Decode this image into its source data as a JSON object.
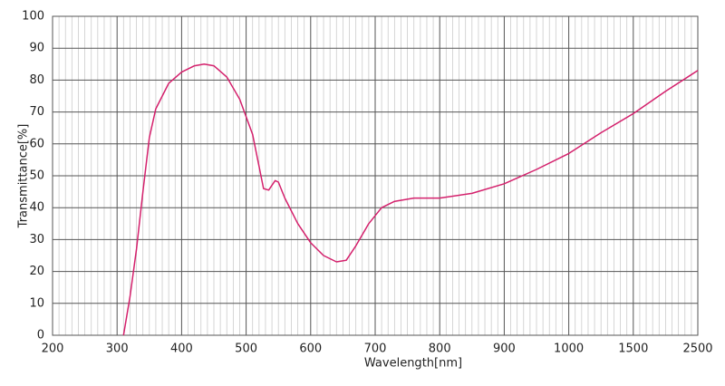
{
  "chart_data": {
    "type": "line",
    "x_label": "Wavelength[nm]",
    "y_label": "Transmittance[%]",
    "xlim": [
      200,
      2500
    ],
    "ylim": [
      0,
      100
    ],
    "xticks": [
      200,
      300,
      400,
      500,
      600,
      700,
      800,
      900,
      1000,
      1500,
      2500
    ],
    "yticks": [
      0,
      10,
      20,
      30,
      40,
      50,
      60,
      70,
      80,
      90,
      100
    ],
    "grid": true,
    "series": [
      {
        "color": "#d4206c",
        "x": [
          310,
          320,
          330,
          340,
          350,
          360,
          380,
          400,
          420,
          435,
          450,
          470,
          490,
          510,
          520,
          527,
          535,
          545,
          550,
          560,
          580,
          600,
          620,
          640,
          655,
          670,
          690,
          710,
          730,
          760,
          800,
          850,
          900,
          950,
          1000,
          1250,
          1500,
          2000,
          2500
        ],
        "values": [
          0,
          12,
          27,
          45,
          62,
          71,
          79,
          82.5,
          84.5,
          85,
          84.5,
          81,
          74,
          63,
          53,
          46,
          45.5,
          48.5,
          48,
          43,
          35,
          29,
          25,
          23,
          23.5,
          28,
          35,
          40,
          42,
          43,
          43,
          44.5,
          47.5,
          52,
          57,
          63.5,
          69.5,
          76.5,
          83
        ]
      }
    ]
  }
}
